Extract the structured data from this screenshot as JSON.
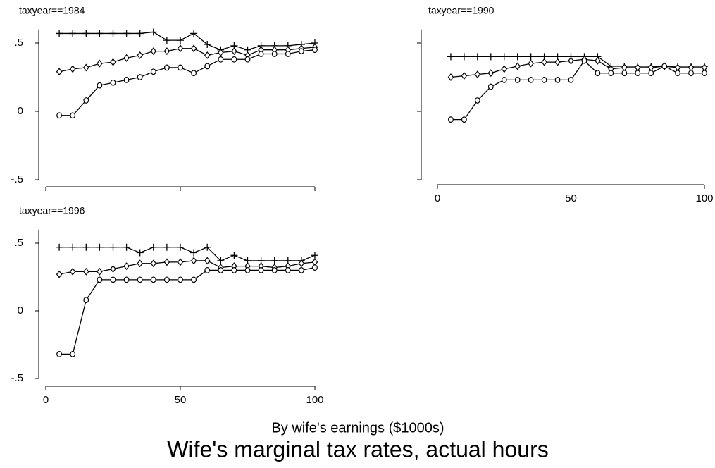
{
  "figure": {
    "xlabel": "By wife's earnings ($1000s)",
    "title": "Wife's marginal tax rates, actual hours"
  },
  "chart_data": [
    {
      "type": "line",
      "title": "taxyear==1984",
      "x": [
        5,
        10,
        15,
        20,
        25,
        30,
        35,
        40,
        45,
        50,
        55,
        60,
        65,
        70,
        75,
        80,
        85,
        90,
        95,
        100
      ],
      "xlim": [
        0,
        100
      ],
      "xticks": [
        0,
        50,
        100
      ],
      "show_xtick_labels": false,
      "ylim": [
        -0.5,
        0.6
      ],
      "yticks": [
        {
          "value": -0.5,
          "label": "-.5"
        },
        0,
        {
          "value": 0.5,
          "label": ".5"
        }
      ],
      "show_ytick_labels": true,
      "series": [
        {
          "marker": "plus",
          "color": "#000000",
          "values": [
            0.57,
            0.57,
            0.57,
            0.57,
            0.57,
            0.57,
            0.57,
            0.58,
            0.52,
            0.52,
            0.57,
            0.49,
            0.45,
            0.48,
            0.45,
            0.48,
            0.48,
            0.48,
            0.49,
            0.5
          ]
        },
        {
          "marker": "diamond",
          "color": "#000000",
          "values": [
            0.29,
            0.31,
            0.32,
            0.35,
            0.36,
            0.39,
            0.41,
            0.44,
            0.44,
            0.46,
            0.46,
            0.41,
            0.43,
            0.44,
            0.41,
            0.45,
            0.45,
            0.45,
            0.46,
            0.47
          ]
        },
        {
          "marker": "circle",
          "color": "#000000",
          "values": [
            -0.03,
            -0.03,
            0.08,
            0.19,
            0.21,
            0.23,
            0.25,
            0.29,
            0.32,
            0.32,
            0.28,
            0.33,
            0.38,
            0.38,
            0.38,
            0.42,
            0.42,
            0.42,
            0.44,
            0.45
          ]
        }
      ]
    },
    {
      "type": "line",
      "title": "taxyear==1990",
      "x": [
        5,
        10,
        15,
        20,
        25,
        30,
        35,
        40,
        45,
        50,
        55,
        60,
        65,
        70,
        75,
        80,
        85,
        90,
        95,
        100
      ],
      "xlim": [
        0,
        100
      ],
      "xticks": [
        0,
        50,
        100
      ],
      "show_xtick_labels": true,
      "ylim": [
        -0.5,
        0.6
      ],
      "yticks": [
        {
          "value": -0.5,
          "label": "-.5"
        },
        0,
        {
          "value": 0.5,
          "label": ".5"
        }
      ],
      "show_ytick_labels": false,
      "series": [
        {
          "marker": "plus",
          "color": "#000000",
          "values": [
            0.4,
            0.4,
            0.4,
            0.4,
            0.4,
            0.4,
            0.4,
            0.4,
            0.4,
            0.4,
            0.4,
            0.4,
            0.33,
            0.33,
            0.33,
            0.33,
            0.33,
            0.33,
            0.33,
            0.33
          ]
        },
        {
          "marker": "diamond",
          "color": "#000000",
          "values": [
            0.25,
            0.26,
            0.27,
            0.28,
            0.31,
            0.33,
            0.35,
            0.36,
            0.36,
            0.37,
            0.38,
            0.37,
            0.31,
            0.32,
            0.32,
            0.32,
            0.33,
            0.32,
            0.32,
            0.32
          ]
        },
        {
          "marker": "circle",
          "color": "#000000",
          "values": [
            -0.06,
            -0.06,
            0.08,
            0.18,
            0.23,
            0.23,
            0.23,
            0.23,
            0.23,
            0.23,
            0.37,
            0.28,
            0.28,
            0.28,
            0.28,
            0.28,
            0.33,
            0.28,
            0.28,
            0.28
          ]
        }
      ]
    },
    {
      "type": "line",
      "title": "taxyear==1996",
      "x": [
        5,
        10,
        15,
        20,
        25,
        30,
        35,
        40,
        45,
        50,
        55,
        60,
        65,
        70,
        75,
        80,
        85,
        90,
        95,
        100
      ],
      "xlim": [
        0,
        100
      ],
      "xticks": [
        0,
        50,
        100
      ],
      "show_xtick_labels": true,
      "ylim": [
        -0.5,
        0.6
      ],
      "yticks": [
        {
          "value": -0.5,
          "label": "-.5"
        },
        0,
        {
          "value": 0.5,
          "label": ".5"
        }
      ],
      "show_ytick_labels": true,
      "series": [
        {
          "marker": "plus",
          "color": "#000000",
          "values": [
            0.47,
            0.47,
            0.47,
            0.47,
            0.47,
            0.47,
            0.43,
            0.47,
            0.47,
            0.47,
            0.43,
            0.47,
            0.37,
            0.41,
            0.37,
            0.37,
            0.37,
            0.37,
            0.37,
            0.41
          ]
        },
        {
          "marker": "diamond",
          "color": "#000000",
          "values": [
            0.27,
            0.29,
            0.29,
            0.29,
            0.31,
            0.33,
            0.35,
            0.35,
            0.36,
            0.36,
            0.37,
            0.37,
            0.32,
            0.33,
            0.33,
            0.33,
            0.32,
            0.33,
            0.35,
            0.36
          ]
        },
        {
          "marker": "circle",
          "color": "#000000",
          "values": [
            -0.32,
            -0.32,
            0.08,
            0.23,
            0.23,
            0.23,
            0.23,
            0.23,
            0.23,
            0.23,
            0.23,
            0.3,
            0.3,
            0.3,
            0.3,
            0.3,
            0.3,
            0.3,
            0.3,
            0.32
          ]
        }
      ]
    }
  ]
}
